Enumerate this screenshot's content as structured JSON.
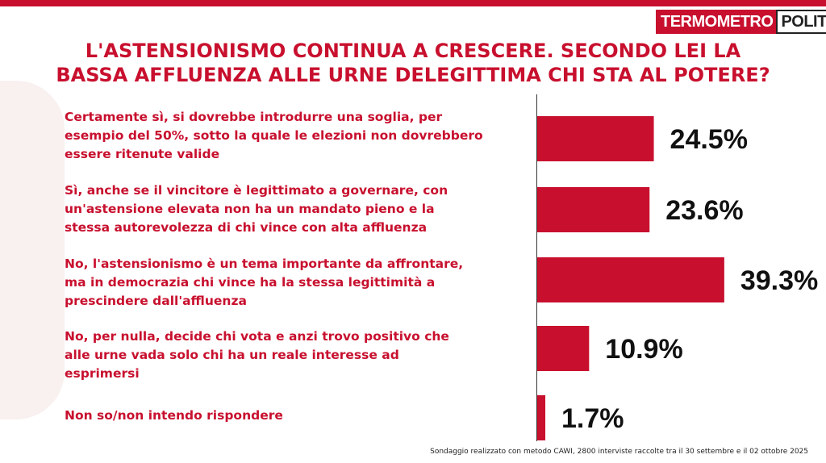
{
  "brand": {
    "logo_left": "TERMOMETRO",
    "logo_right": "POLITICO",
    "accent_color": "#c8102e"
  },
  "title_line1": "L'ASTENSIONISMO CONTINUA A CRESCERE. SECONDO LEI LA",
  "title_line2": "BASSA AFFLUENZA ALLE URNE DELEGITTIMA CHI STA AL POTERE?",
  "footnote": "Sondaggio realizzato con metodo CAWI, 2800 interviste raccolte tra il 30 settembre e il 02 ottobre  2025",
  "chart_data": {
    "type": "bar",
    "orientation": "horizontal",
    "categories": [
      [
        "Certamente sì, si dovrebbe introdurre una soglia, per",
        "esempio del 50%, sotto la quale le elezioni non dovrebbero",
        "essere ritenute valide"
      ],
      [
        "Sì, anche se il vincitore è legittimato a governare, con",
        "un'astensione elevata non ha un mandato pieno e la",
        "stessa autorevolezza di chi vince con alta affluenza"
      ],
      [
        "No, l'astensionismo è un tema importante da affrontare,",
        "ma in democrazia chi vince ha la stessa legittimità a",
        "prescindere dall'affluenza"
      ],
      [
        "No, per nulla, decide chi vota e anzi trovo positivo che",
        "alle urne vada solo chi ha un reale interesse ad",
        "esprimersi"
      ],
      [
        "Non so/non intendo rispondere"
      ]
    ],
    "values": [
      24.5,
      23.6,
      39.3,
      10.9,
      1.7
    ],
    "value_labels": [
      "24.5%",
      "23.6%",
      "39.3%",
      "10.9%",
      "1.7%"
    ],
    "bar_color": "#c8102e",
    "xlim": [
      0,
      45
    ],
    "grid": false,
    "legend": "none"
  }
}
